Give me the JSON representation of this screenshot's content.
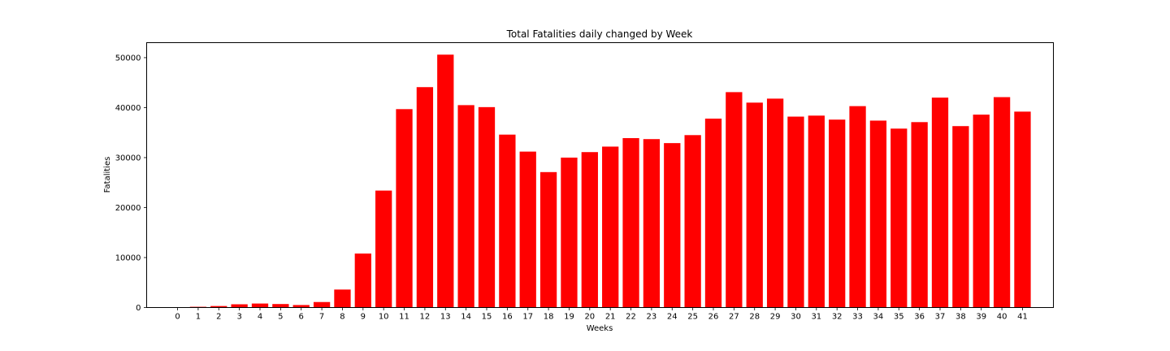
{
  "chart_data": {
    "type": "bar",
    "title": "Total Fatalities daily changed by Week",
    "xlabel": "Weeks",
    "ylabel": "Fatalities",
    "categories": [
      "0",
      "1",
      "2",
      "3",
      "4",
      "5",
      "6",
      "7",
      "8",
      "9",
      "10",
      "11",
      "12",
      "13",
      "14",
      "15",
      "16",
      "17",
      "18",
      "19",
      "20",
      "21",
      "22",
      "23",
      "24",
      "25",
      "26",
      "27",
      "28",
      "29",
      "30",
      "31",
      "32",
      "33",
      "34",
      "35",
      "36",
      "37",
      "38",
      "39",
      "40",
      "41"
    ],
    "values": [
      0,
      150,
      300,
      650,
      800,
      700,
      500,
      1100,
      3600,
      10800,
      23400,
      39700,
      44100,
      50600,
      40500,
      40100,
      34600,
      31200,
      27100,
      30000,
      31100,
      32200,
      33900,
      33700,
      32900,
      34500,
      37800,
      43100,
      41000,
      41800,
      38200,
      38400,
      37600,
      40300,
      37400,
      35800,
      37100,
      42000,
      36300,
      38600,
      42100,
      39200
    ],
    "yticks": [
      "0",
      "10000",
      "20000",
      "30000",
      "40000",
      "50000"
    ],
    "ylim": [
      0,
      53000
    ],
    "xlim": [
      -1.5,
      42.5
    ],
    "bar_color": "#ff0000",
    "grid": false,
    "legend": "none"
  }
}
